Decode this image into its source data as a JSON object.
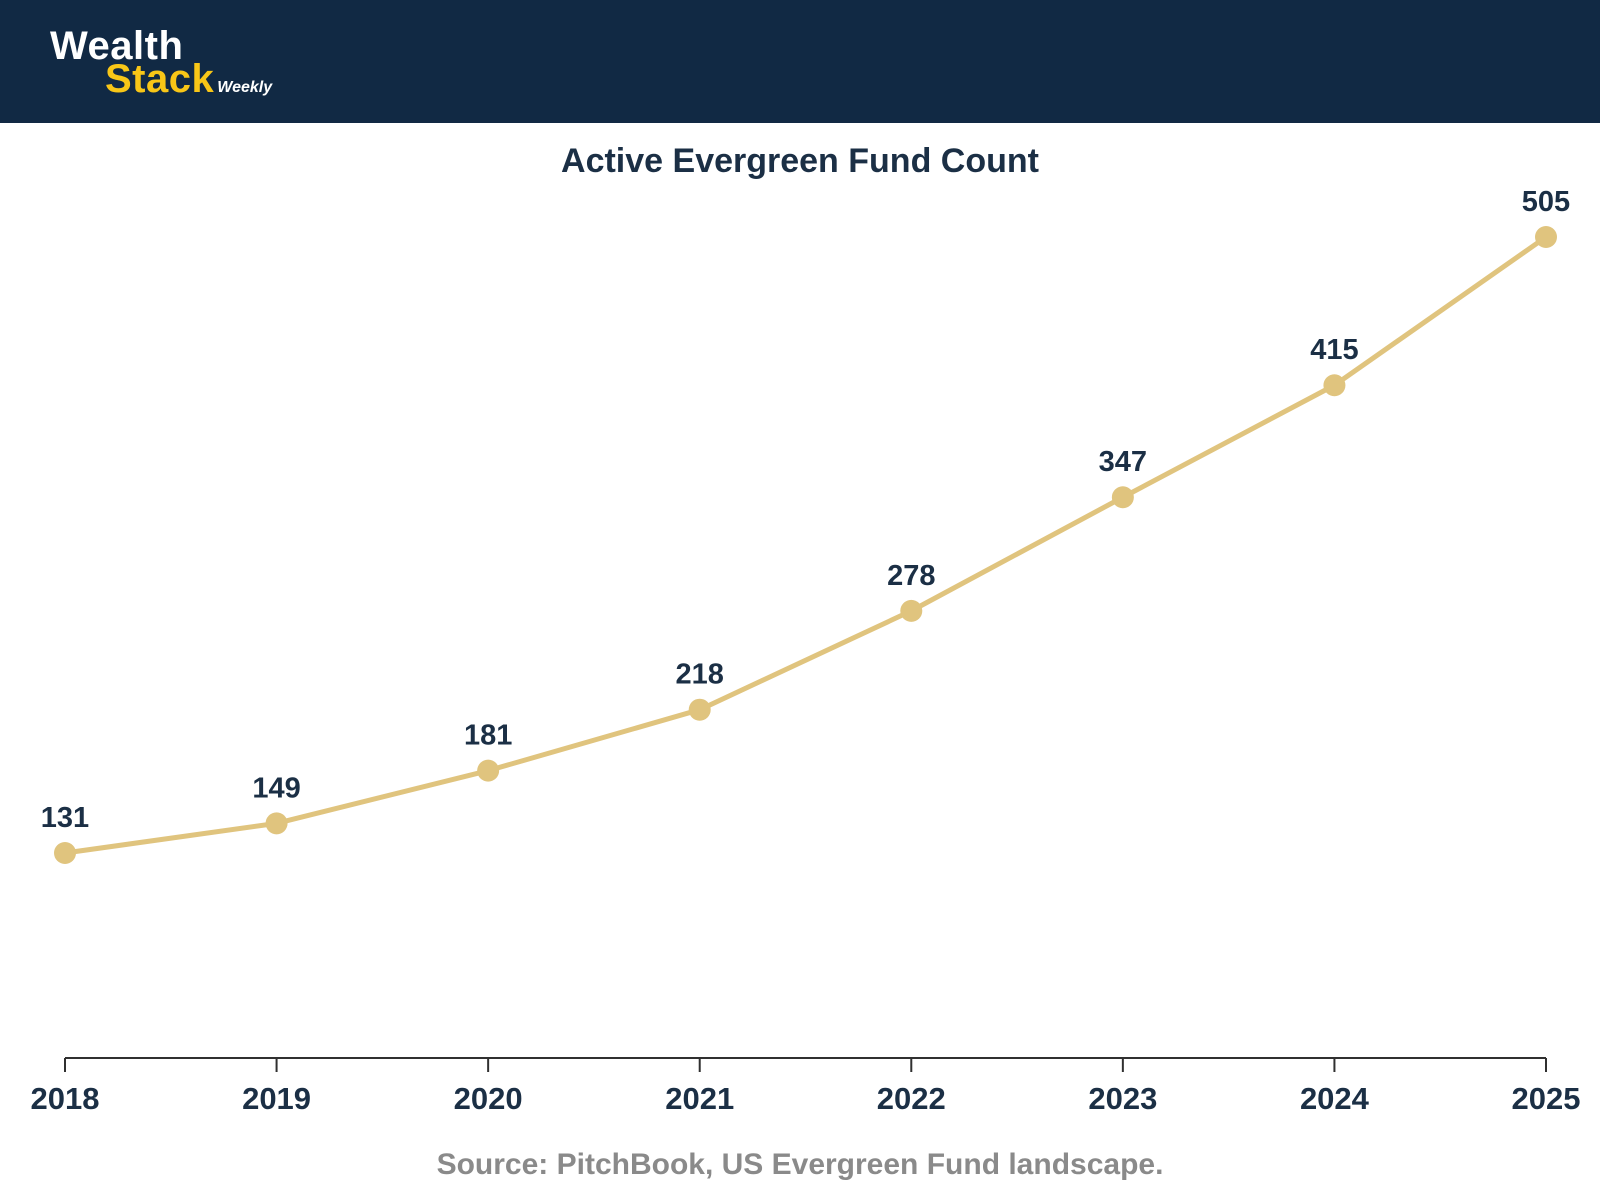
{
  "header": {
    "logo": {
      "line1": "Wealth",
      "line2": "Stack",
      "suffix": "Weekly"
    }
  },
  "chart_data": {
    "type": "line",
    "title": "Active Evergreen Fund Count",
    "categories": [
      "2018",
      "2019",
      "2020",
      "2021",
      "2022",
      "2023",
      "2024",
      "2025"
    ],
    "series": [
      {
        "name": "Active evergreen fund count",
        "values": [
          131,
          149,
          181,
          218,
          278,
          347,
          415,
          505
        ]
      }
    ],
    "xlabel": "",
    "ylabel": "",
    "data_labels": [
      131,
      149,
      181,
      218,
      278,
      347,
      415,
      505
    ],
    "grid": false,
    "legend": "none",
    "y_axis_visible": false
  },
  "footer": {
    "source": "Source: PitchBook, US Evergreen Fund landscape."
  },
  "colors": {
    "header_bg": "#112944",
    "logo_yellow": "#F8C617",
    "line_gold": "#E0C47E",
    "marker_gold": "#E0C47E",
    "text_navy": "#1B2F45",
    "axis": "#303030",
    "source_gray": "#8A8A8A"
  }
}
